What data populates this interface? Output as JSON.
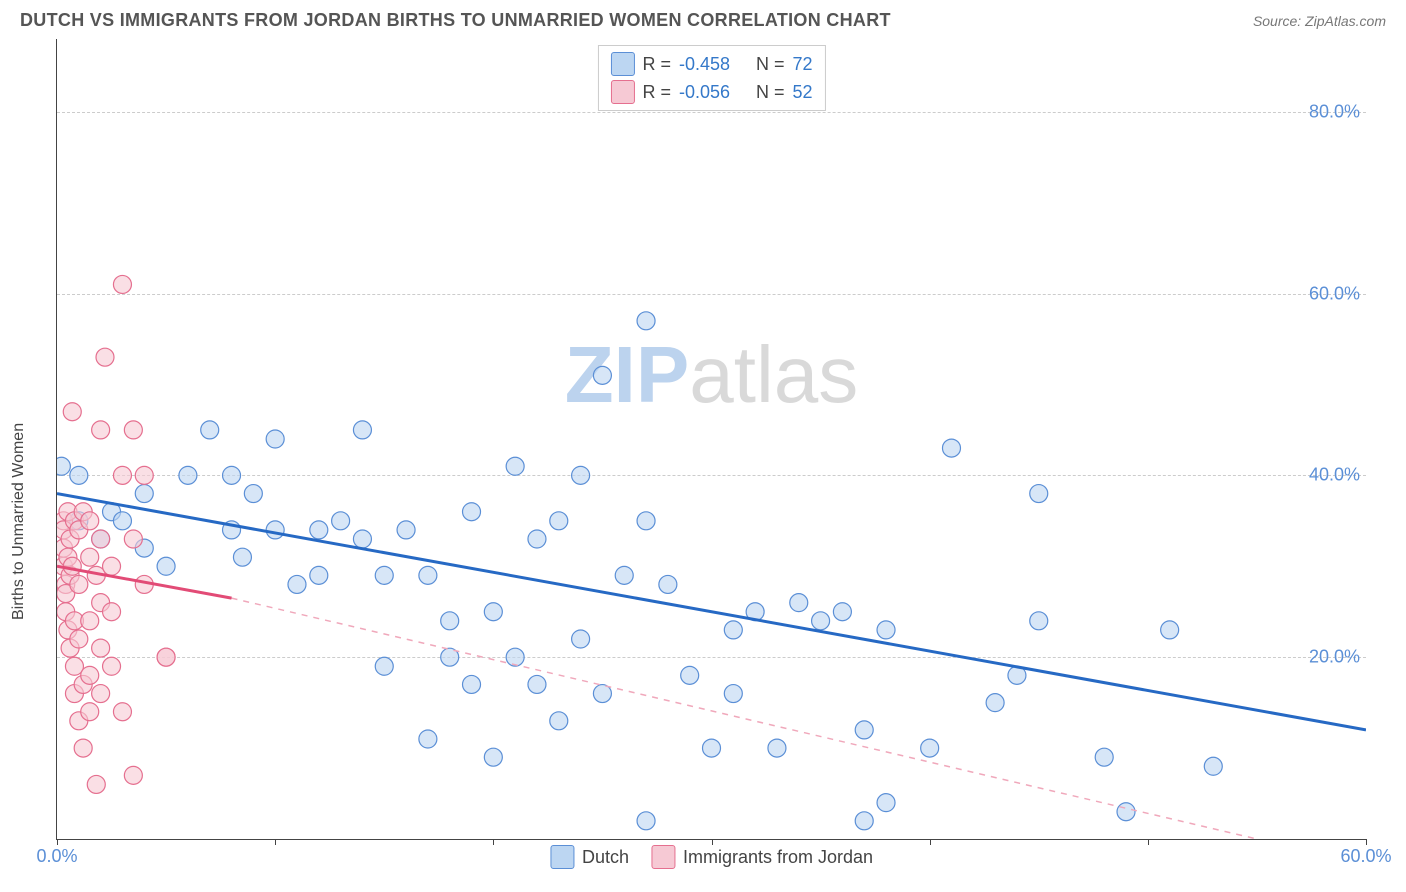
{
  "header": {
    "title": "DUTCH VS IMMIGRANTS FROM JORDAN BIRTHS TO UNMARRIED WOMEN CORRELATION CHART",
    "source": "Source: ZipAtlas.com"
  },
  "chart": {
    "type": "scatter",
    "ylabel": "Births to Unmarried Women",
    "xlim": [
      0,
      60
    ],
    "ylim": [
      0,
      88
    ],
    "xticks": [
      0,
      60
    ],
    "xtick_labels": [
      "0.0%",
      "60.0%"
    ],
    "xtick_minor": [
      10,
      20,
      30,
      40,
      50
    ],
    "yticks": [
      20,
      40,
      60,
      80
    ],
    "ytick_labels": [
      "20.0%",
      "40.0%",
      "60.0%",
      "80.0%"
    ],
    "grid_color": "#cccccc",
    "axis_color": "#444444",
    "background_color": "#ffffff",
    "ytick_color": "#5b8fd6",
    "xtick_color": "#5b8fd6",
    "watermark": {
      "text_a": "ZIP",
      "text_b": "atlas",
      "color_a": "#bcd3ee",
      "color_b": "#d9d9d9"
    },
    "legend_top": [
      {
        "swatch_fill": "#bcd6f2",
        "swatch_stroke": "#5b8fd6",
        "r_label": "R =",
        "r_value": "-0.458",
        "n_label": "N =",
        "n_value": "72"
      },
      {
        "swatch_fill": "#f6c9d4",
        "swatch_stroke": "#e56f8f",
        "r_label": "R =",
        "r_value": "-0.056",
        "n_label": "N =",
        "n_value": "52"
      }
    ],
    "legend_bottom": [
      {
        "swatch_fill": "#bcd6f2",
        "swatch_stroke": "#5b8fd6",
        "label": "Dutch"
      },
      {
        "swatch_fill": "#f6c9d4",
        "swatch_stroke": "#e56f8f",
        "label": "Immigrants from Jordan"
      }
    ],
    "series": [
      {
        "id": "dutch",
        "marker_fill": "#bcd6f2",
        "marker_fill_opacity": 0.6,
        "marker_stroke": "#5b8fd6",
        "marker_r": 9,
        "trend_solid": {
          "x1": 0,
          "y1": 38,
          "x2": 60,
          "y2": 12,
          "color": "#2669c4",
          "width": 3
        },
        "points": [
          [
            0.2,
            41
          ],
          [
            1,
            40
          ],
          [
            1,
            35
          ],
          [
            2.5,
            36
          ],
          [
            3,
            35
          ],
          [
            4,
            38
          ],
          [
            4,
            32
          ],
          [
            5,
            30
          ],
          [
            6,
            40
          ],
          [
            7,
            45
          ],
          [
            8,
            40
          ],
          [
            8,
            34
          ],
          [
            8.5,
            31
          ],
          [
            9,
            38
          ],
          [
            10,
            44
          ],
          [
            10,
            34
          ],
          [
            11,
            28
          ],
          [
            12,
            34
          ],
          [
            12,
            29
          ],
          [
            13,
            35
          ],
          [
            14,
            45
          ],
          [
            14,
            33
          ],
          [
            15,
            29
          ],
          [
            15,
            19
          ],
          [
            16,
            34
          ],
          [
            17,
            29
          ],
          [
            17,
            11
          ],
          [
            18,
            24
          ],
          [
            18,
            20
          ],
          [
            19,
            36
          ],
          [
            19,
            17
          ],
          [
            20,
            25
          ],
          [
            20,
            9
          ],
          [
            21,
            20
          ],
          [
            21,
            41
          ],
          [
            22,
            33
          ],
          [
            22,
            17
          ],
          [
            23,
            35
          ],
          [
            23,
            13
          ],
          [
            24,
            22
          ],
          [
            24,
            40
          ],
          [
            25,
            51
          ],
          [
            25,
            16
          ],
          [
            26,
            29
          ],
          [
            27,
            57
          ],
          [
            27,
            35
          ],
          [
            27,
            2
          ],
          [
            28,
            28
          ],
          [
            29,
            18
          ],
          [
            30,
            10
          ],
          [
            31,
            23
          ],
          [
            31,
            16
          ],
          [
            32,
            25
          ],
          [
            33,
            10
          ],
          [
            34,
            26
          ],
          [
            35,
            24
          ],
          [
            36,
            25
          ],
          [
            37,
            2
          ],
          [
            37,
            12
          ],
          [
            38,
            23
          ],
          [
            38,
            4
          ],
          [
            41,
            43
          ],
          [
            43,
            15
          ],
          [
            44,
            18
          ],
          [
            45,
            24
          ],
          [
            45,
            38
          ],
          [
            48,
            9
          ],
          [
            49,
            3
          ],
          [
            51,
            23
          ],
          [
            53,
            8
          ],
          [
            40,
            10
          ],
          [
            2,
            33
          ]
        ]
      },
      {
        "id": "jordan",
        "marker_fill": "#f6c9d4",
        "marker_fill_opacity": 0.6,
        "marker_stroke": "#e56f8f",
        "marker_r": 9,
        "trend_solid": {
          "x1": 0,
          "y1": 30,
          "x2": 8,
          "y2": 26.5,
          "color": "#e24b76",
          "width": 3
        },
        "trend_dashed": {
          "x1": 8,
          "y1": 26.5,
          "x2": 55,
          "y2": 0,
          "color": "#f0a8bb",
          "width": 1.5
        },
        "points": [
          [
            0.3,
            35
          ],
          [
            0.3,
            34
          ],
          [
            0.3,
            32
          ],
          [
            0.3,
            30
          ],
          [
            0.4,
            28
          ],
          [
            0.4,
            27
          ],
          [
            0.4,
            25
          ],
          [
            0.5,
            36
          ],
          [
            0.5,
            31
          ],
          [
            0.5,
            23
          ],
          [
            0.6,
            33
          ],
          [
            0.6,
            29
          ],
          [
            0.6,
            21
          ],
          [
            0.7,
            47
          ],
          [
            0.7,
            30
          ],
          [
            0.8,
            35
          ],
          [
            0.8,
            24
          ],
          [
            0.8,
            19
          ],
          [
            0.8,
            16
          ],
          [
            1,
            34
          ],
          [
            1,
            28
          ],
          [
            1,
            22
          ],
          [
            1,
            13
          ],
          [
            1.2,
            36
          ],
          [
            1.2,
            17
          ],
          [
            1.2,
            10
          ],
          [
            1.5,
            35
          ],
          [
            1.5,
            31
          ],
          [
            1.5,
            24
          ],
          [
            1.5,
            18
          ],
          [
            1.5,
            14
          ],
          [
            1.8,
            29
          ],
          [
            1.8,
            6
          ],
          [
            2,
            45
          ],
          [
            2,
            33
          ],
          [
            2,
            26
          ],
          [
            2,
            21
          ],
          [
            2,
            16
          ],
          [
            2.2,
            53
          ],
          [
            2.5,
            30
          ],
          [
            2.5,
            25
          ],
          [
            2.5,
            19
          ],
          [
            3,
            61
          ],
          [
            3,
            40
          ],
          [
            3,
            14
          ],
          [
            3.5,
            45
          ],
          [
            3.5,
            33
          ],
          [
            3.5,
            7
          ],
          [
            4,
            40
          ],
          [
            4,
            28
          ],
          [
            5,
            20
          ],
          [
            5,
            20
          ]
        ]
      }
    ]
  }
}
